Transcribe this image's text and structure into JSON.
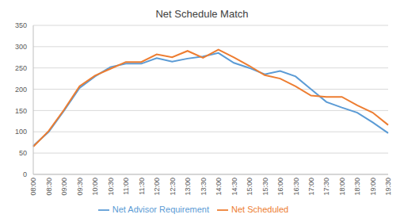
{
  "chart_data": {
    "type": "line",
    "title": "Net Schedule Match",
    "categories": [
      "08:00",
      "08:30",
      "09:00",
      "09:30",
      "10:00",
      "10:30",
      "11:00",
      "11:30",
      "12:00",
      "12:30",
      "13:00",
      "13:30",
      "14:00",
      "14:30",
      "15:00",
      "15:30",
      "16:00",
      "16:30",
      "17:00",
      "17:30",
      "18:00",
      "18:30",
      "19:00",
      "19:30"
    ],
    "series": [
      {
        "name": "Net Advisor Requirement",
        "color": "#5b9bd5",
        "values": [
          67,
          100,
          150,
          203,
          230,
          252,
          260,
          260,
          273,
          265,
          272,
          277,
          285,
          262,
          250,
          235,
          243,
          230,
          200,
          170,
          157,
          145,
          122,
          97
        ]
      },
      {
        "name": "Net Scheduled",
        "color": "#ed7d31",
        "values": [
          65,
          102,
          152,
          207,
          232,
          248,
          264,
          264,
          282,
          275,
          290,
          274,
          293,
          275,
          255,
          233,
          225,
          207,
          185,
          182,
          182,
          162,
          145,
          116
        ]
      }
    ],
    "ylim": [
      0,
      350
    ],
    "yticks": [
      0,
      50,
      100,
      150,
      200,
      250,
      300,
      350
    ],
    "grid": true,
    "legend": "bottom"
  }
}
